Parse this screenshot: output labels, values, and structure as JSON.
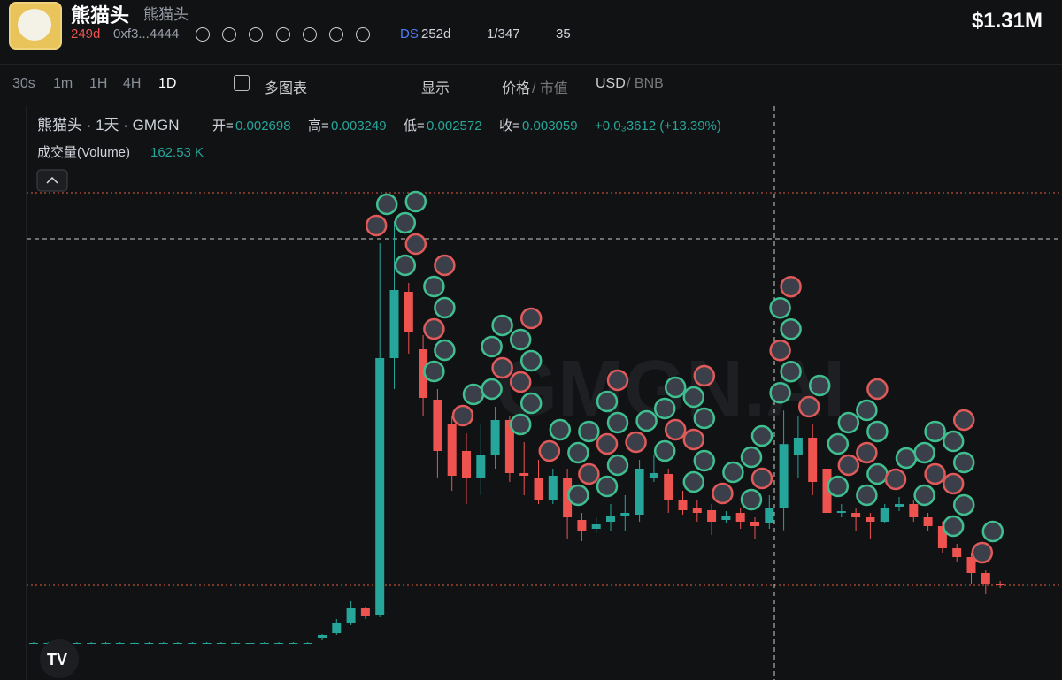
{
  "header": {
    "title": "熊猫头",
    "subtitle": "熊猫头",
    "age": "249d",
    "address": "0xf3...4444",
    "ds_label": "DS",
    "ds_age": "252d",
    "rank": "1/347",
    "views": "35",
    "market_cap": "$1.31M"
  },
  "toolbar": {
    "intervals": [
      "30s",
      "1m",
      "1H",
      "4H",
      "1D"
    ],
    "multi_chart": "多图表",
    "display": "显示",
    "price": "价格",
    "price_alt": "/ 市值",
    "currency": "USD",
    "currency_alt": "/ BNB"
  },
  "legend": {
    "symbol": "熊猫头 · 1天 · GMGN",
    "open_label": "开=",
    "open": "0.002698",
    "high_label": "高=",
    "high": "0.003249",
    "low_label": "低=",
    "low": "0.002572",
    "close_label": "收=",
    "close": "0.003059",
    "change": "+0.0₃3612 (+13.39%)",
    "volume_label": "成交量(Volume)",
    "volume": "162.53 K"
  },
  "watermark": "GMGN.AI",
  "chart_data": {
    "type": "candlestick",
    "ylim": [
      0.001725,
      0.00497
    ],
    "up_color": "#26a69a",
    "down_color": "#ef5350",
    "candles": [
      [
        0.001935,
        0.00194,
        0.00193,
        0.001935
      ],
      [
        0.001935,
        0.00194,
        0.00193,
        0.001935
      ],
      [
        0.001935,
        0.00194,
        0.00193,
        0.001935
      ],
      [
        0.001935,
        0.00194,
        0.00193,
        0.001935
      ],
      [
        0.001935,
        0.00194,
        0.00193,
        0.001935
      ],
      [
        0.001935,
        0.00194,
        0.00193,
        0.001935
      ],
      [
        0.001935,
        0.00194,
        0.00193,
        0.001935
      ],
      [
        0.001935,
        0.00194,
        0.00193,
        0.001935
      ],
      [
        0.001935,
        0.00194,
        0.00193,
        0.001935
      ],
      [
        0.001935,
        0.00194,
        0.00193,
        0.001935
      ],
      [
        0.001935,
        0.00194,
        0.00193,
        0.001935
      ],
      [
        0.001935,
        0.00194,
        0.00193,
        0.001935
      ],
      [
        0.001935,
        0.00194,
        0.00193,
        0.001935
      ],
      [
        0.001935,
        0.00194,
        0.00193,
        0.001935
      ],
      [
        0.001935,
        0.00194,
        0.00193,
        0.001935
      ],
      [
        0.001935,
        0.00194,
        0.00193,
        0.001935
      ],
      [
        0.001935,
        0.00194,
        0.00193,
        0.001935
      ],
      [
        0.001935,
        0.00194,
        0.00193,
        0.001935
      ],
      [
        0.001935,
        0.00194,
        0.00193,
        0.001935
      ],
      [
        0.001935,
        0.00194,
        0.00193,
        0.001935
      ],
      [
        0.00196,
        0.001985,
        0.00195,
        0.00198
      ],
      [
        0.00199,
        0.00207,
        0.00198,
        0.002045
      ],
      [
        0.002045,
        0.00217,
        0.002035,
        0.00213
      ],
      [
        0.00213,
        0.00214,
        0.00207,
        0.002085
      ],
      [
        0.002095,
        0.004195,
        0.00208,
        0.003545
      ],
      [
        0.003545,
        0.00432,
        0.00337,
        0.00393
      ],
      [
        0.00392,
        0.00397,
        0.00357,
        0.003695
      ],
      [
        0.003595,
        0.003675,
        0.00322,
        0.00332
      ],
      [
        0.00331,
        0.00337,
        0.00287,
        0.00302
      ],
      [
        0.00317,
        0.00322,
        0.002795,
        0.00288
      ],
      [
        0.00302,
        0.00312,
        0.00272,
        0.00287
      ],
      [
        0.00287,
        0.00317,
        0.00277,
        0.002995
      ],
      [
        0.002995,
        0.00327,
        0.00292,
        0.003195
      ],
      [
        0.003195,
        0.00322,
        0.002845,
        0.002895
      ],
      [
        0.002895,
        0.00307,
        0.00277,
        0.00288
      ],
      [
        0.00287,
        0.00297,
        0.00272,
        0.002745
      ],
      [
        0.002745,
        0.00292,
        0.00272,
        0.00288
      ],
      [
        0.00287,
        0.00292,
        0.00252,
        0.002645
      ],
      [
        0.00263,
        0.00267,
        0.00251,
        0.00257
      ],
      [
        0.00258,
        0.002645,
        0.002555,
        0.002605
      ],
      [
        0.00262,
        0.00272,
        0.00257,
        0.002655
      ],
      [
        0.002655,
        0.00277,
        0.00257,
        0.00267
      ],
      [
        0.00266,
        0.00297,
        0.00262,
        0.00292
      ],
      [
        0.00287,
        0.002995,
        0.002845,
        0.002895
      ],
      [
        0.00289,
        0.00292,
        0.00267,
        0.002745
      ],
      [
        0.002745,
        0.002795,
        0.00266,
        0.002685
      ],
      [
        0.002695,
        0.002745,
        0.00262,
        0.00267
      ],
      [
        0.002685,
        0.00272,
        0.002545,
        0.00262
      ],
      [
        0.00263,
        0.00268,
        0.00261,
        0.002655
      ],
      [
        0.00267,
        0.002695,
        0.00258,
        0.00262
      ],
      [
        0.00262,
        0.002645,
        0.00252,
        0.002595
      ],
      [
        0.00261,
        0.00277,
        0.00258,
        0.002695
      ],
      [
        0.002698,
        0.003249,
        0.002572,
        0.003059
      ],
      [
        0.002995,
        0.00322,
        0.00287,
        0.003095
      ],
      [
        0.003095,
        0.00317,
        0.00277,
        0.002845
      ],
      [
        0.00292,
        0.00297,
        0.002645,
        0.00267
      ],
      [
        0.00267,
        0.00272,
        0.002645,
        0.00268
      ],
      [
        0.00267,
        0.002695,
        0.00257,
        0.002645
      ],
      [
        0.002645,
        0.00267,
        0.00252,
        0.00262
      ],
      [
        0.00262,
        0.00272,
        0.00261,
        0.002695
      ],
      [
        0.002705,
        0.00276,
        0.00268,
        0.00272
      ],
      [
        0.00272,
        0.002745,
        0.00262,
        0.002645
      ],
      [
        0.002645,
        0.00267,
        0.00257,
        0.002595
      ],
      [
        0.002595,
        0.00262,
        0.002445,
        0.00247
      ],
      [
        0.00247,
        0.002495,
        0.002395,
        0.00242
      ],
      [
        0.00242,
        0.002445,
        0.00227,
        0.00233
      ],
      [
        0.00233,
        0.002345,
        0.00221,
        0.00227
      ],
      [
        0.00227,
        0.002285,
        0.002245,
        0.00226
      ]
    ]
  }
}
